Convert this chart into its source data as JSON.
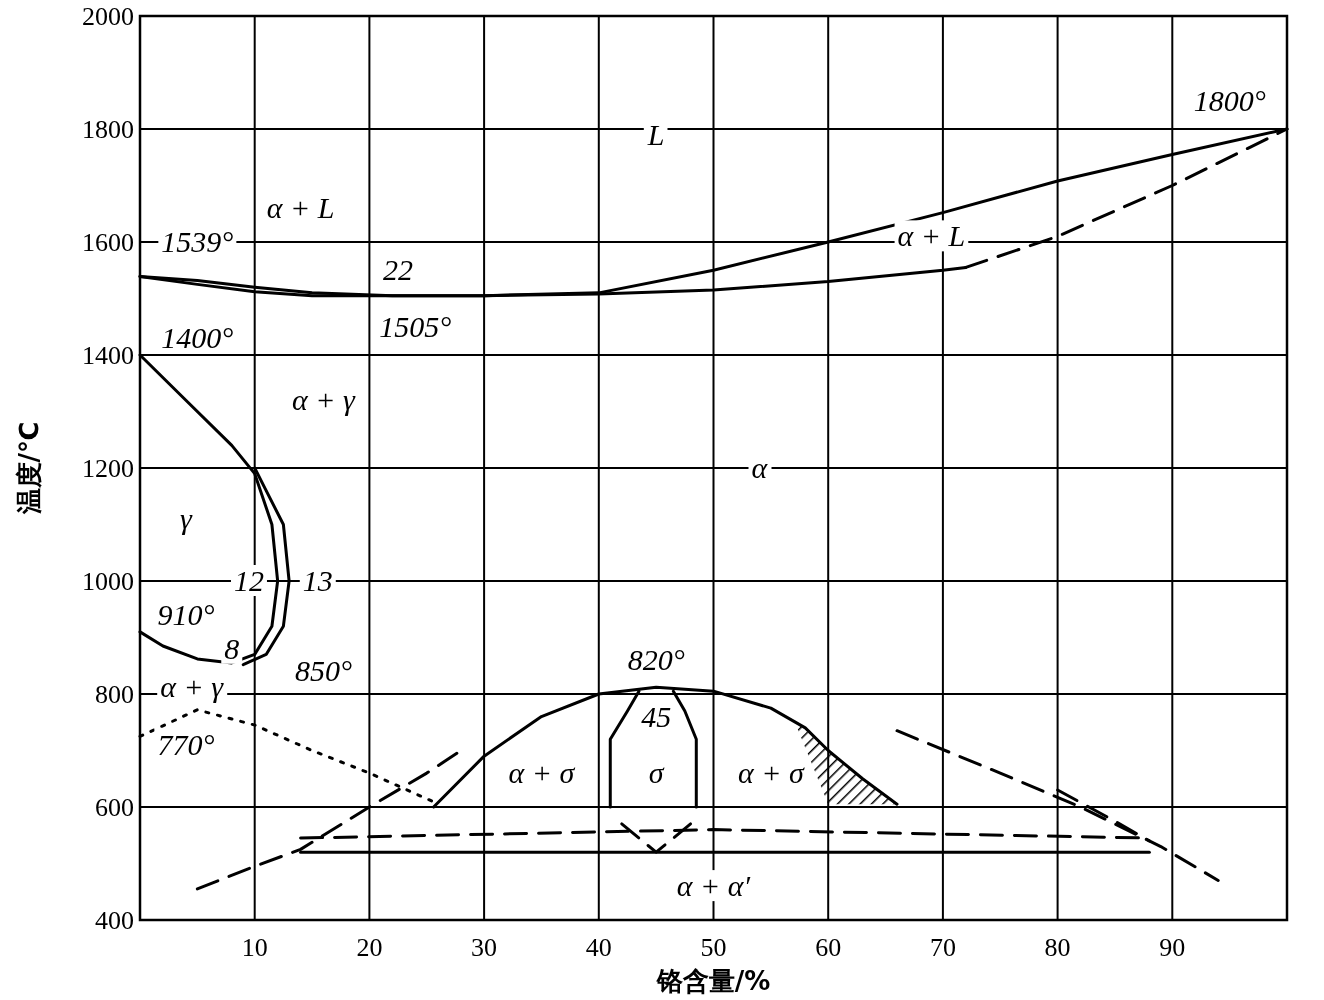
{
  "chart_data": {
    "type": "line",
    "xlabel": "铬含量/%",
    "ylabel": "温度/℃",
    "xlim": [
      0,
      100
    ],
    "ylim": [
      400,
      2000
    ],
    "xticks": [
      10,
      20,
      30,
      40,
      50,
      60,
      70,
      80,
      90
    ],
    "yticks": [
      400,
      600,
      800,
      1000,
      1200,
      1400,
      1600,
      1800,
      2000
    ],
    "grid": true,
    "marker": "none",
    "series": [
      {
        "color": "#000000",
        "line_style": "solid",
        "x": [
          0,
          5,
          10,
          15,
          22,
          30,
          40,
          50,
          60,
          70,
          80,
          90,
          100
        ],
        "values": [
          1539,
          1532,
          1520,
          1510,
          1505,
          1505,
          1510,
          1550,
          1600,
          1652,
          1708,
          1755,
          1800
        ]
      },
      {
        "color": "#000000",
        "line_style": "solid",
        "x": [
          0,
          5,
          10,
          15,
          22,
          30,
          40,
          50,
          60,
          70,
          72
        ],
        "values": [
          1539,
          1525,
          1512,
          1505,
          1505,
          1505,
          1508,
          1515,
          1530,
          1550,
          1555
        ]
      },
      {
        "color": "#000000",
        "line_style": "dashed",
        "x": [
          72,
          80,
          90,
          100
        ],
        "values": [
          1555,
          1610,
          1700,
          1800
        ]
      },
      {
        "color": "#000000",
        "line_style": "solid",
        "x": [
          0,
          4,
          8,
          10,
          11.5,
          12,
          11.5,
          10,
          8,
          5,
          2,
          0
        ],
        "values": [
          1400,
          1320,
          1240,
          1190,
          1100,
          1000,
          920,
          870,
          855,
          862,
          885,
          910
        ]
      },
      {
        "color": "#000000",
        "line_style": "solid",
        "x": [
          10,
          11,
          12.5,
          13,
          12.5,
          11,
          9
        ],
        "values": [
          1200,
          1160,
          1100,
          1000,
          920,
          870,
          852
        ]
      },
      {
        "color": "#000000",
        "line_style": "dotted",
        "x": [
          0,
          5,
          10,
          15,
          20,
          25.5
        ],
        "values": [
          725,
          772,
          745,
          700,
          660,
          610
        ]
      },
      {
        "color": "#000000",
        "line_style": "solid",
        "x": [
          25.6,
          30,
          35,
          40,
          45,
          50,
          55,
          58,
          60,
          63,
          66
        ],
        "values": [
          600,
          690,
          760,
          800,
          812,
          805,
          775,
          740,
          700,
          650,
          605
        ]
      },
      {
        "color": "#000000",
        "line_style": "solid",
        "x": [
          41,
          41,
          42.5,
          43.5
        ],
        "values": [
          600,
          720,
          770,
          805
        ]
      },
      {
        "color": "#000000",
        "line_style": "solid",
        "x": [
          48.5,
          48.5,
          47.5,
          46.5
        ],
        "values": [
          600,
          720,
          770,
          805
        ]
      },
      {
        "color": "#000000",
        "line_style": "dashed",
        "x": [
          5,
          10,
          14,
          20,
          25,
          28
        ],
        "values": [
          455,
          495,
          525,
          600,
          660,
          700
        ]
      },
      {
        "color": "#000000",
        "line_style": "dashed",
        "x": [
          66,
          75,
          82,
          89,
          94
        ],
        "values": [
          735,
          660,
          600,
          530,
          470
        ]
      },
      {
        "color": "#000000",
        "line_style": "dashed",
        "x": [
          80,
          85,
          88
        ],
        "values": [
          630,
          575,
          540
        ]
      },
      {
        "color": "#000000",
        "line_style": "solid",
        "x": [
          14,
          88
        ],
        "values": [
          520,
          520
        ]
      },
      {
        "color": "#000000",
        "line_style": "dashed",
        "x": [
          14,
          50,
          88
        ],
        "values": [
          545,
          560,
          545
        ]
      },
      {
        "color": "#000000",
        "line_style": "dashed",
        "x": [
          42,
          45,
          48
        ],
        "values": [
          570,
          520,
          570
        ]
      }
    ],
    "annotations": [
      "L",
      "α + L",
      "α + L",
      "1539°",
      "1800°",
      "22",
      "1505°",
      "1400°",
      "α + γ",
      "α",
      "γ",
      "12",
      "13",
      "910°",
      "8",
      "850°",
      "α + γ",
      "770°",
      "820°",
      "45",
      "α + σ",
      "σ",
      "α + σ",
      "α + α′"
    ]
  }
}
